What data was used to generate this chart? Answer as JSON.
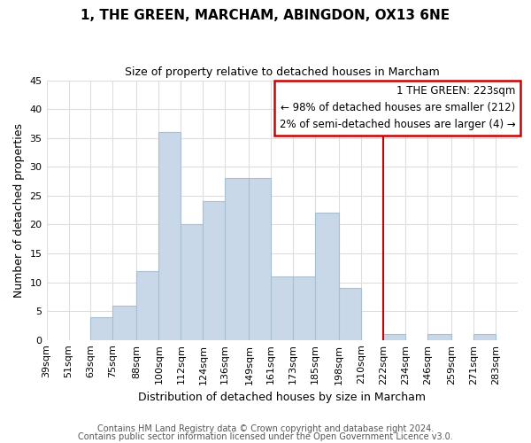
{
  "title1": "1, THE GREEN, MARCHAM, ABINGDON, OX13 6NE",
  "title2": "Size of property relative to detached houses in Marcham",
  "xlabel": "Distribution of detached houses by size in Marcham",
  "ylabel": "Number of detached properties",
  "bin_labels": [
    "39sqm",
    "51sqm",
    "63sqm",
    "75sqm",
    "88sqm",
    "100sqm",
    "112sqm",
    "124sqm",
    "136sqm",
    "149sqm",
    "161sqm",
    "173sqm",
    "185sqm",
    "198sqm",
    "210sqm",
    "222sqm",
    "234sqm",
    "246sqm",
    "259sqm",
    "271sqm",
    "283sqm"
  ],
  "bin_edges": [
    39,
    51,
    63,
    75,
    88,
    100,
    112,
    124,
    136,
    149,
    161,
    173,
    185,
    198,
    210,
    222,
    234,
    246,
    259,
    271,
    283,
    295
  ],
  "counts": [
    0,
    0,
    4,
    6,
    12,
    36,
    20,
    24,
    28,
    28,
    11,
    11,
    22,
    9,
    0,
    1,
    0,
    1,
    0,
    1,
    0
  ],
  "bar_color": "#c8d8e8",
  "bar_edge_color": "#a8bfd0",
  "vline_x": 222,
  "vline_color": "#cc0000",
  "annotation_title": "1 THE GREEN: 223sqm",
  "annotation_line1": "← 98% of detached houses are smaller (212)",
  "annotation_line2": "2% of semi-detached houses are larger (4) →",
  "annotation_box_facecolor": "#ffffff",
  "annotation_border_color": "#cc0000",
  "ylim": [
    0,
    45
  ],
  "yticks": [
    0,
    5,
    10,
    15,
    20,
    25,
    30,
    35,
    40,
    45
  ],
  "footnote1": "Contains HM Land Registry data © Crown copyright and database right 2024.",
  "footnote2": "Contains public sector information licensed under the Open Government Licence v3.0.",
  "bg_color": "#ffffff",
  "grid_color": "#dddddd"
}
